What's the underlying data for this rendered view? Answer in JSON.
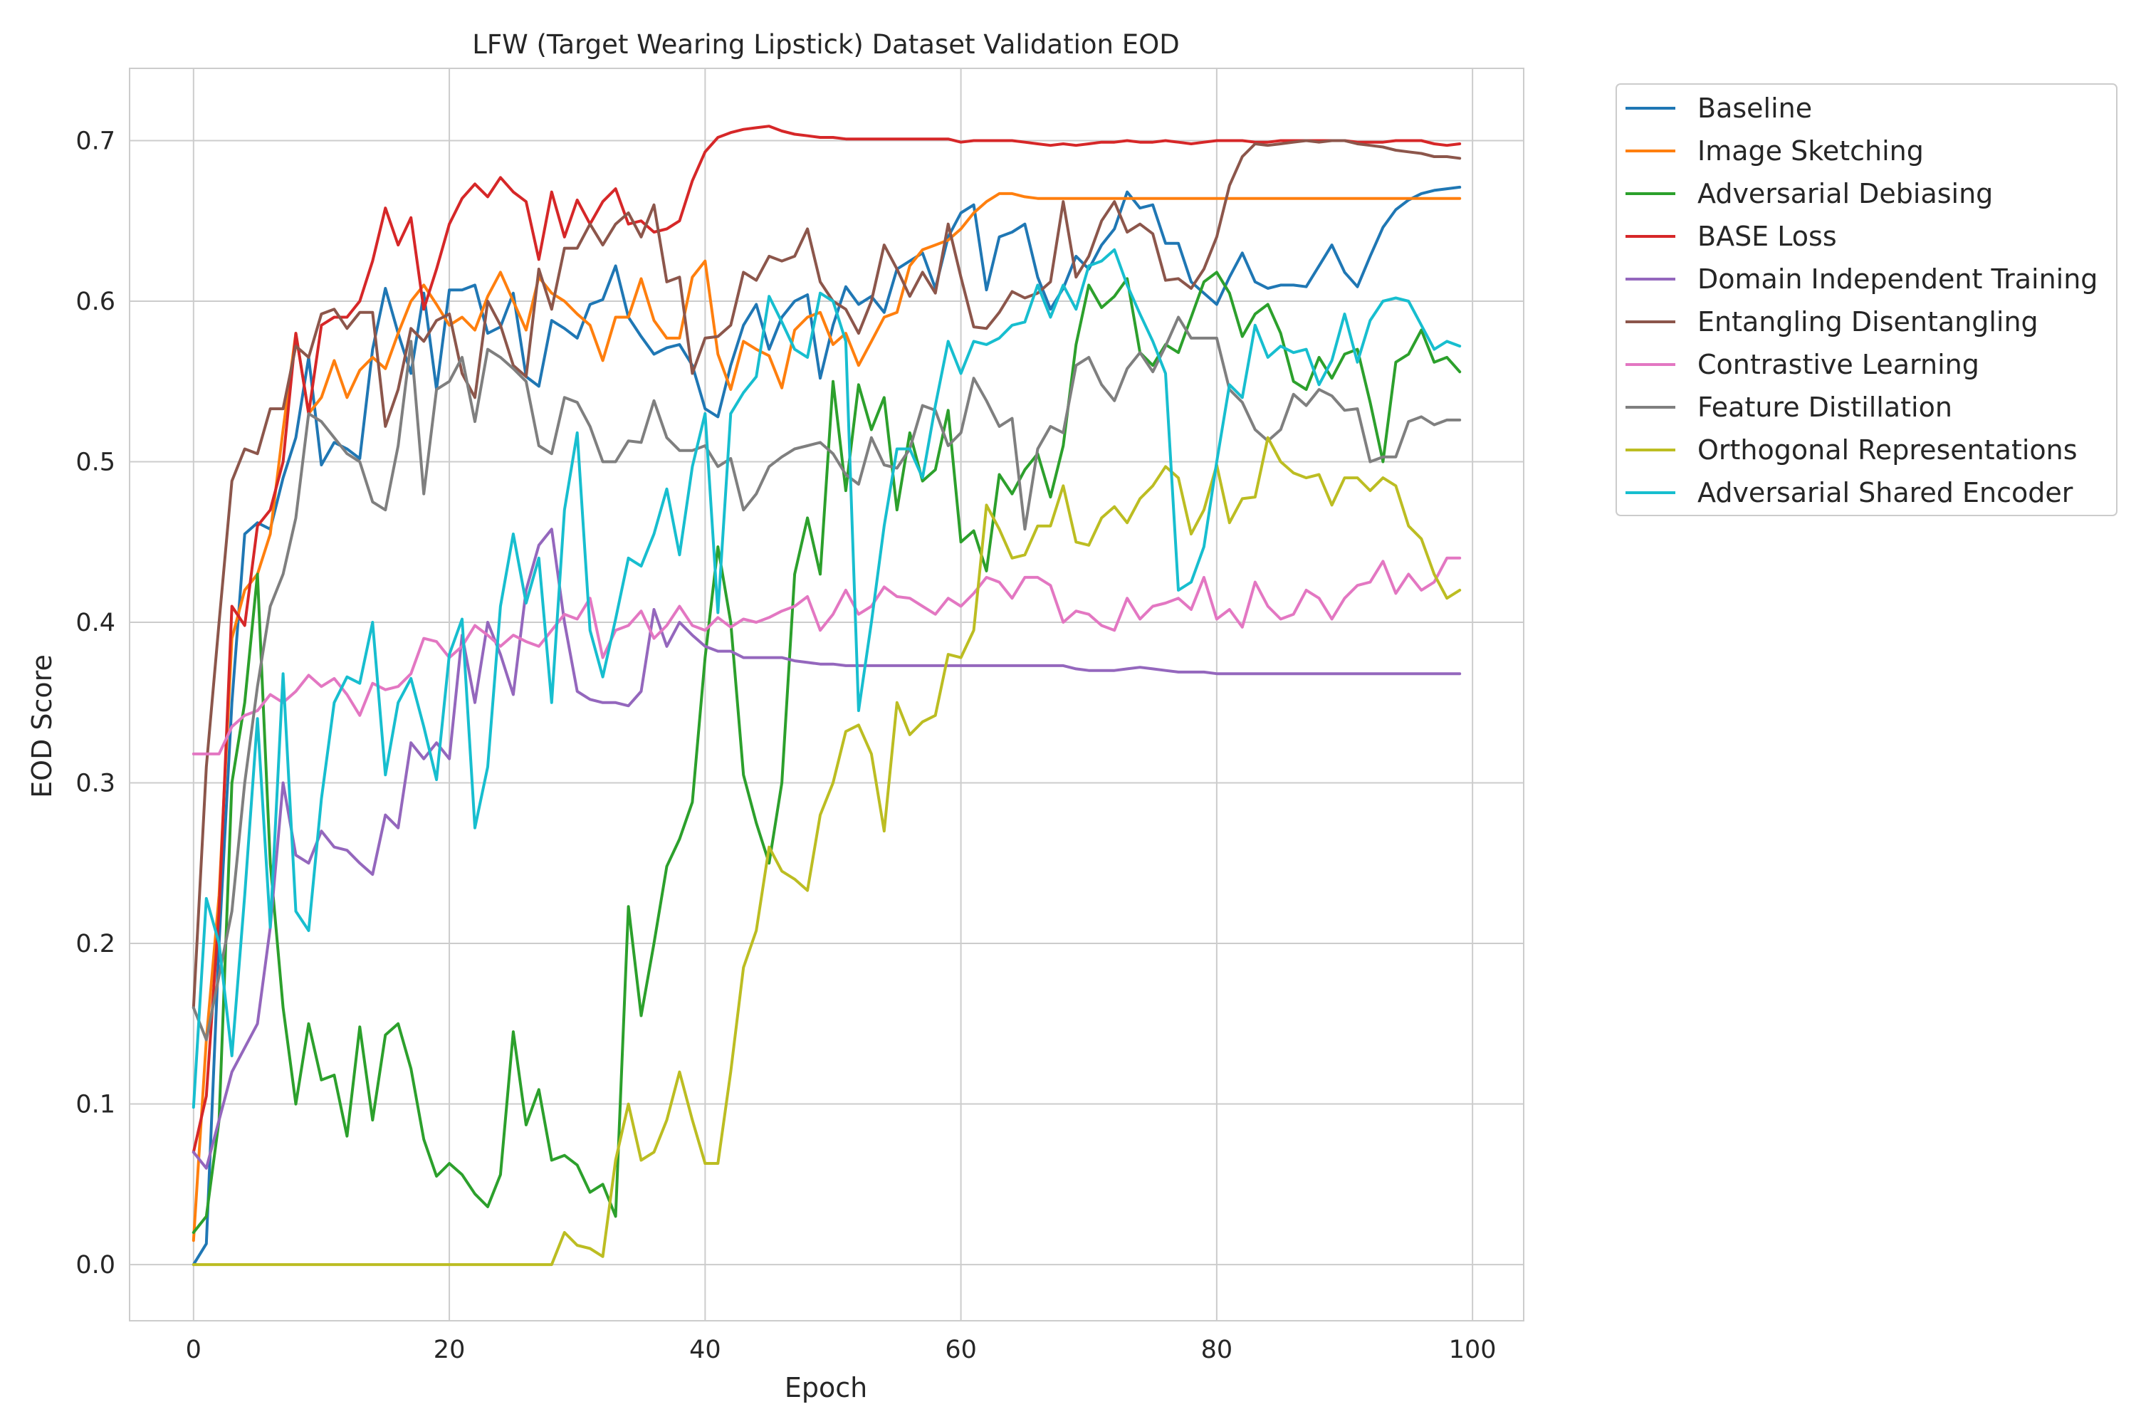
{
  "chart_data": {
    "type": "line",
    "title": "LFW (Target Wearing Lipstick) Dataset Validation EOD",
    "xlabel": "Epoch",
    "ylabel": "EOD Score",
    "xlim": [
      -5,
      104
    ],
    "ylim": [
      -0.035,
      0.745
    ],
    "xticks": [
      0,
      20,
      40,
      60,
      80,
      100
    ],
    "yticks": [
      0.0,
      0.1,
      0.2,
      0.3,
      0.4,
      0.5,
      0.6,
      0.7
    ],
    "xtick_labels": [
      "0",
      "20",
      "40",
      "60",
      "80",
      "100"
    ],
    "ytick_labels": [
      "0.0",
      "0.1",
      "0.2",
      "0.3",
      "0.4",
      "0.5",
      "0.6",
      "0.7"
    ],
    "grid": true,
    "legend_position": "outside-upper-right",
    "x_start": 0,
    "x_step": 1,
    "series": [
      {
        "name": "Baseline",
        "color": "#1f77b4",
        "values": [
          0.0,
          0.013,
          0.2,
          0.35,
          0.455,
          0.462,
          0.458,
          0.49,
          0.515,
          0.565,
          0.498,
          0.512,
          0.508,
          0.502,
          0.57,
          0.608,
          0.58,
          0.555,
          0.605,
          0.545,
          0.607,
          0.607,
          0.61,
          0.58,
          0.584,
          0.605,
          0.553,
          0.547,
          0.588,
          0.583,
          0.577,
          0.598,
          0.601,
          0.622,
          0.59,
          0.578,
          0.567,
          0.571,
          0.573,
          0.56,
          0.533,
          0.528,
          0.56,
          0.585,
          0.598,
          0.57,
          0.59,
          0.6,
          0.604,
          0.552,
          0.585,
          0.609,
          0.598,
          0.603,
          0.593,
          0.62,
          0.625,
          0.63,
          0.608,
          0.64,
          0.655,
          0.66,
          0.607,
          0.64,
          0.643,
          0.648,
          0.615,
          0.595,
          0.608,
          0.628,
          0.62,
          0.635,
          0.645,
          0.668,
          0.658,
          0.66,
          0.636,
          0.636,
          0.612,
          0.605,
          0.598,
          0.615,
          0.63,
          0.612,
          0.608,
          0.61,
          0.61,
          0.609,
          0.622,
          0.635,
          0.618,
          0.609,
          0.628,
          0.646,
          0.657,
          0.663,
          0.667,
          0.669,
          0.67,
          0.671
        ]
      },
      {
        "name": "Image Sketching",
        "color": "#ff7f0e",
        "values": [
          0.015,
          0.14,
          0.23,
          0.39,
          0.42,
          0.43,
          0.455,
          0.52,
          0.58,
          0.53,
          0.54,
          0.563,
          0.54,
          0.557,
          0.565,
          0.558,
          0.58,
          0.6,
          0.61,
          0.598,
          0.585,
          0.59,
          0.582,
          0.603,
          0.618,
          0.6,
          0.582,
          0.615,
          0.605,
          0.6,
          0.592,
          0.585,
          0.563,
          0.59,
          0.59,
          0.614,
          0.588,
          0.577,
          0.577,
          0.615,
          0.625,
          0.567,
          0.545,
          0.575,
          0.57,
          0.566,
          0.546,
          0.582,
          0.59,
          0.593,
          0.573,
          0.58,
          0.56,
          0.575,
          0.59,
          0.593,
          0.622,
          0.632,
          0.635,
          0.638,
          0.645,
          0.655,
          0.662,
          0.667,
          0.667,
          0.665,
          0.664,
          0.664,
          0.664,
          0.664,
          0.664,
          0.664,
          0.664,
          0.664,
          0.664,
          0.664,
          0.664,
          0.664,
          0.664,
          0.664,
          0.664,
          0.664,
          0.664,
          0.664,
          0.664,
          0.664,
          0.664,
          0.664,
          0.664,
          0.664,
          0.664,
          0.664,
          0.664,
          0.664,
          0.664,
          0.664,
          0.664,
          0.664,
          0.664,
          0.664
        ]
      },
      {
        "name": "Adversarial Debiasing",
        "color": "#2ca02c",
        "values": [
          0.02,
          0.03,
          0.09,
          0.3,
          0.35,
          0.43,
          0.25,
          0.16,
          0.1,
          0.15,
          0.115,
          0.118,
          0.08,
          0.148,
          0.09,
          0.143,
          0.15,
          0.122,
          0.078,
          0.055,
          0.063,
          0.056,
          0.044,
          0.036,
          0.056,
          0.145,
          0.087,
          0.109,
          0.065,
          0.068,
          0.062,
          0.045,
          0.05,
          0.03,
          0.223,
          0.155,
          0.2,
          0.248,
          0.265,
          0.288,
          0.378,
          0.447,
          0.4,
          0.305,
          0.275,
          0.25,
          0.3,
          0.43,
          0.465,
          0.43,
          0.55,
          0.482,
          0.548,
          0.52,
          0.54,
          0.47,
          0.518,
          0.488,
          0.495,
          0.532,
          0.45,
          0.457,
          0.432,
          0.492,
          0.48,
          0.495,
          0.505,
          0.478,
          0.51,
          0.573,
          0.61,
          0.596,
          0.603,
          0.614,
          0.568,
          0.56,
          0.573,
          0.568,
          0.59,
          0.612,
          0.618,
          0.605,
          0.578,
          0.592,
          0.598,
          0.58,
          0.55,
          0.545,
          0.565,
          0.552,
          0.567,
          0.57,
          0.537,
          0.5,
          0.562,
          0.567,
          0.582,
          0.562,
          0.565,
          0.556
        ]
      },
      {
        "name": "BASE Loss",
        "color": "#d62728",
        "values": [
          0.07,
          0.105,
          0.22,
          0.41,
          0.398,
          0.46,
          0.47,
          0.5,
          0.58,
          0.53,
          0.585,
          0.59,
          0.59,
          0.6,
          0.625,
          0.658,
          0.635,
          0.652,
          0.595,
          0.62,
          0.648,
          0.664,
          0.673,
          0.665,
          0.677,
          0.668,
          0.662,
          0.626,
          0.668,
          0.64,
          0.663,
          0.648,
          0.662,
          0.67,
          0.648,
          0.65,
          0.643,
          0.645,
          0.65,
          0.675,
          0.693,
          0.702,
          0.705,
          0.707,
          0.708,
          0.709,
          0.706,
          0.704,
          0.703,
          0.702,
          0.702,
          0.701,
          0.701,
          0.701,
          0.701,
          0.701,
          0.701,
          0.701,
          0.701,
          0.701,
          0.699,
          0.7,
          0.7,
          0.7,
          0.7,
          0.699,
          0.698,
          0.697,
          0.698,
          0.697,
          0.698,
          0.699,
          0.699,
          0.7,
          0.699,
          0.699,
          0.7,
          0.699,
          0.698,
          0.699,
          0.7,
          0.7,
          0.7,
          0.699,
          0.699,
          0.7,
          0.7,
          0.7,
          0.7,
          0.7,
          0.7,
          0.699,
          0.699,
          0.699,
          0.7,
          0.7,
          0.7,
          0.698,
          0.697,
          0.698
        ]
      },
      {
        "name": "Domain Independent Training",
        "color": "#9467bd",
        "values": [
          0.07,
          0.06,
          0.09,
          0.12,
          0.135,
          0.15,
          0.21,
          0.3,
          0.255,
          0.25,
          0.27,
          0.26,
          0.258,
          0.25,
          0.243,
          0.28,
          0.272,
          0.325,
          0.315,
          0.325,
          0.315,
          0.392,
          0.35,
          0.4,
          0.38,
          0.355,
          0.42,
          0.448,
          0.458,
          0.4,
          0.357,
          0.352,
          0.35,
          0.35,
          0.348,
          0.357,
          0.408,
          0.385,
          0.4,
          0.392,
          0.385,
          0.382,
          0.382,
          0.378,
          0.378,
          0.378,
          0.378,
          0.376,
          0.375,
          0.374,
          0.374,
          0.373,
          0.373,
          0.373,
          0.373,
          0.373,
          0.373,
          0.373,
          0.373,
          0.373,
          0.373,
          0.373,
          0.373,
          0.373,
          0.373,
          0.373,
          0.373,
          0.373,
          0.373,
          0.371,
          0.37,
          0.37,
          0.37,
          0.371,
          0.372,
          0.371,
          0.37,
          0.369,
          0.369,
          0.369,
          0.368,
          0.368,
          0.368,
          0.368,
          0.368,
          0.368,
          0.368,
          0.368,
          0.368,
          0.368,
          0.368,
          0.368,
          0.368,
          0.368,
          0.368,
          0.368,
          0.368,
          0.368,
          0.368,
          0.368
        ]
      },
      {
        "name": "Entangling Disentangling",
        "color": "#8c564b",
        "values": [
          0.16,
          0.31,
          0.4,
          0.488,
          0.508,
          0.505,
          0.533,
          0.533,
          0.572,
          0.565,
          0.592,
          0.595,
          0.583,
          0.593,
          0.593,
          0.522,
          0.545,
          0.583,
          0.575,
          0.588,
          0.592,
          0.555,
          0.54,
          0.6,
          0.585,
          0.56,
          0.553,
          0.62,
          0.595,
          0.633,
          0.633,
          0.648,
          0.635,
          0.648,
          0.655,
          0.64,
          0.66,
          0.612,
          0.615,
          0.555,
          0.577,
          0.578,
          0.585,
          0.618,
          0.613,
          0.628,
          0.625,
          0.628,
          0.645,
          0.612,
          0.6,
          0.595,
          0.58,
          0.6,
          0.635,
          0.62,
          0.603,
          0.618,
          0.605,
          0.648,
          0.615,
          0.584,
          0.583,
          0.593,
          0.606,
          0.602,
          0.605,
          0.612,
          0.662,
          0.615,
          0.628,
          0.65,
          0.662,
          0.643,
          0.648,
          0.642,
          0.613,
          0.614,
          0.608,
          0.62,
          0.64,
          0.672,
          0.69,
          0.698,
          0.697,
          0.698,
          0.699,
          0.7,
          0.699,
          0.7,
          0.7,
          0.698,
          0.697,
          0.696,
          0.694,
          0.693,
          0.692,
          0.69,
          0.69,
          0.689
        ]
      },
      {
        "name": "Contrastive Learning",
        "color": "#e377c2",
        "values": [
          0.318,
          0.318,
          0.318,
          0.335,
          0.342,
          0.345,
          0.355,
          0.35,
          0.357,
          0.367,
          0.36,
          0.365,
          0.355,
          0.342,
          0.362,
          0.358,
          0.36,
          0.368,
          0.39,
          0.388,
          0.378,
          0.385,
          0.398,
          0.392,
          0.385,
          0.392,
          0.388,
          0.385,
          0.395,
          0.405,
          0.402,
          0.415,
          0.378,
          0.395,
          0.398,
          0.407,
          0.39,
          0.398,
          0.41,
          0.398,
          0.395,
          0.403,
          0.397,
          0.402,
          0.4,
          0.403,
          0.407,
          0.41,
          0.416,
          0.395,
          0.405,
          0.42,
          0.405,
          0.41,
          0.422,
          0.416,
          0.415,
          0.41,
          0.405,
          0.415,
          0.41,
          0.418,
          0.428,
          0.425,
          0.415,
          0.428,
          0.428,
          0.423,
          0.4,
          0.407,
          0.405,
          0.398,
          0.395,
          0.415,
          0.402,
          0.41,
          0.412,
          0.415,
          0.408,
          0.428,
          0.402,
          0.408,
          0.397,
          0.425,
          0.41,
          0.402,
          0.405,
          0.42,
          0.415,
          0.402,
          0.415,
          0.423,
          0.425,
          0.438,
          0.418,
          0.43,
          0.42,
          0.425,
          0.44,
          0.44
        ]
      },
      {
        "name": "Feature Distillation",
        "color": "#7f7f7f",
        "values": [
          0.16,
          0.14,
          0.18,
          0.22,
          0.3,
          0.36,
          0.41,
          0.43,
          0.465,
          0.53,
          0.525,
          0.515,
          0.505,
          0.5,
          0.475,
          0.47,
          0.51,
          0.575,
          0.48,
          0.545,
          0.55,
          0.565,
          0.525,
          0.57,
          0.565,
          0.558,
          0.55,
          0.51,
          0.505,
          0.54,
          0.537,
          0.522,
          0.5,
          0.5,
          0.513,
          0.512,
          0.538,
          0.515,
          0.507,
          0.507,
          0.51,
          0.497,
          0.502,
          0.47,
          0.48,
          0.497,
          0.503,
          0.508,
          0.51,
          0.512,
          0.505,
          0.492,
          0.486,
          0.515,
          0.498,
          0.496,
          0.508,
          0.535,
          0.532,
          0.51,
          0.518,
          0.552,
          0.538,
          0.522,
          0.527,
          0.458,
          0.508,
          0.522,
          0.518,
          0.56,
          0.565,
          0.548,
          0.538,
          0.558,
          0.568,
          0.556,
          0.572,
          0.59,
          0.577,
          0.577,
          0.577,
          0.545,
          0.537,
          0.52,
          0.513,
          0.52,
          0.542,
          0.535,
          0.545,
          0.541,
          0.532,
          0.533,
          0.5,
          0.503,
          0.503,
          0.525,
          0.528,
          0.523,
          0.526,
          0.526
        ]
      },
      {
        "name": "Orthogonal Representations",
        "color": "#bcbd22",
        "values": [
          0.0,
          0.0,
          0.0,
          0.0,
          0.0,
          0.0,
          0.0,
          0.0,
          0.0,
          0.0,
          0.0,
          0.0,
          0.0,
          0.0,
          0.0,
          0.0,
          0.0,
          0.0,
          0.0,
          0.0,
          0.0,
          0.0,
          0.0,
          0.0,
          0.0,
          0.0,
          0.0,
          0.0,
          0.0,
          0.02,
          0.012,
          0.01,
          0.005,
          0.065,
          0.1,
          0.065,
          0.07,
          0.09,
          0.12,
          0.09,
          0.063,
          0.063,
          0.12,
          0.185,
          0.208,
          0.26,
          0.245,
          0.24,
          0.233,
          0.28,
          0.3,
          0.332,
          0.336,
          0.318,
          0.27,
          0.35,
          0.33,
          0.338,
          0.342,
          0.38,
          0.378,
          0.395,
          0.473,
          0.458,
          0.44,
          0.442,
          0.46,
          0.46,
          0.485,
          0.45,
          0.448,
          0.465,
          0.472,
          0.462,
          0.477,
          0.485,
          0.497,
          0.49,
          0.455,
          0.47,
          0.498,
          0.462,
          0.477,
          0.478,
          0.515,
          0.5,
          0.493,
          0.49,
          0.492,
          0.473,
          0.49,
          0.49,
          0.482,
          0.49,
          0.485,
          0.46,
          0.452,
          0.43,
          0.415,
          0.42
        ]
      },
      {
        "name": "Adversarial Shared Encoder",
        "color": "#17becf",
        "values": [
          0.098,
          0.228,
          0.2,
          0.13,
          0.23,
          0.34,
          0.21,
          0.368,
          0.22,
          0.208,
          0.29,
          0.35,
          0.366,
          0.362,
          0.4,
          0.305,
          0.35,
          0.365,
          0.335,
          0.302,
          0.38,
          0.402,
          0.272,
          0.31,
          0.41,
          0.455,
          0.412,
          0.44,
          0.35,
          0.47,
          0.518,
          0.395,
          0.366,
          0.402,
          0.44,
          0.435,
          0.455,
          0.483,
          0.442,
          0.497,
          0.53,
          0.406,
          0.53,
          0.543,
          0.553,
          0.603,
          0.587,
          0.57,
          0.565,
          0.605,
          0.6,
          0.575,
          0.345,
          0.4,
          0.46,
          0.508,
          0.508,
          0.49,
          0.535,
          0.575,
          0.555,
          0.575,
          0.573,
          0.577,
          0.585,
          0.587,
          0.61,
          0.59,
          0.61,
          0.595,
          0.622,
          0.625,
          0.632,
          0.61,
          0.592,
          0.575,
          0.555,
          0.42,
          0.425,
          0.447,
          0.5,
          0.548,
          0.54,
          0.585,
          0.565,
          0.572,
          0.568,
          0.57,
          0.548,
          0.563,
          0.592,
          0.562,
          0.588,
          0.6,
          0.602,
          0.6,
          0.585,
          0.57,
          0.575,
          0.572
        ]
      }
    ]
  }
}
